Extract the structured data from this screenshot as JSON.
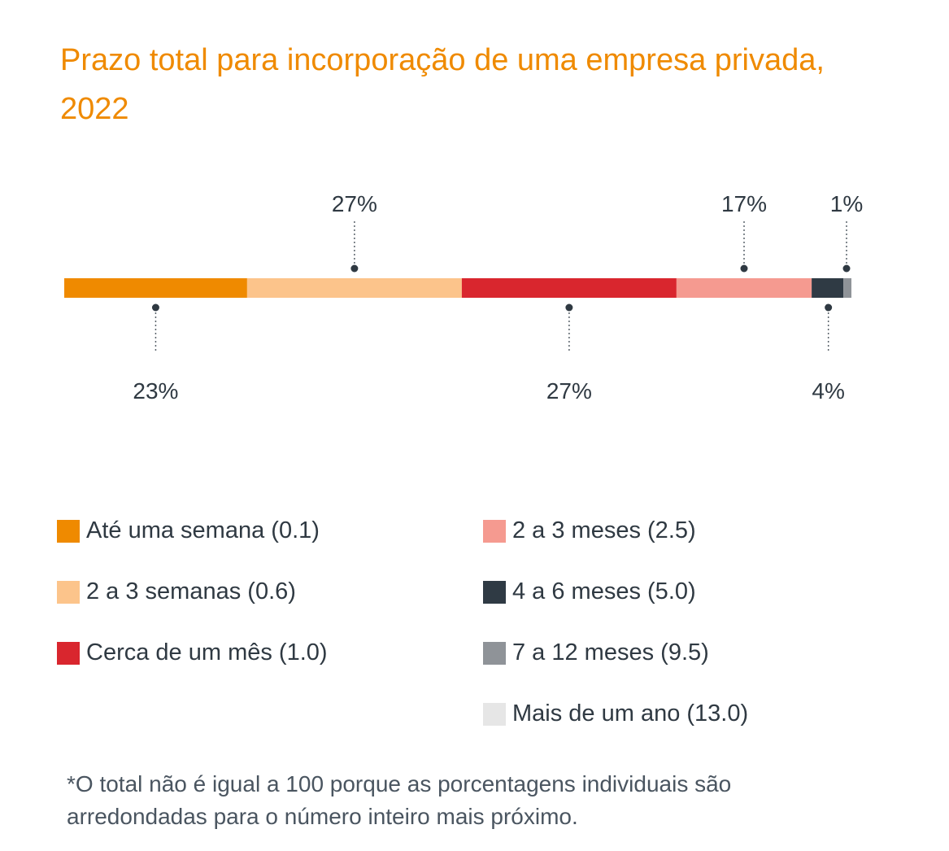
{
  "title": "Prazo total para incorporação de uma empresa privada, 2022",
  "chart_data": {
    "type": "bar",
    "stacked": true,
    "orientation": "horizontal",
    "title": "Prazo total para incorporação de uma empresa privada, 2022",
    "unit": "%",
    "series": [
      {
        "name": "Até uma semana (0.1)",
        "value": 23,
        "label": "23%",
        "color": "#ef8a00",
        "label_position": "below"
      },
      {
        "name": "2 a 3 semanas (0.6)",
        "value": 27,
        "label": "27%",
        "color": "#fcc48b",
        "label_position": "above"
      },
      {
        "name": "Cerca de um mês (1.0)",
        "value": 27,
        "label": "27%",
        "color": "#d9262e",
        "label_position": "below"
      },
      {
        "name": "2 a 3 meses (2.5)",
        "value": 17,
        "label": "17%",
        "color": "#f59a90",
        "label_position": "above"
      },
      {
        "name": "4 a 6 meses (5.0)",
        "value": 4,
        "label": "4%",
        "color": "#2f3a44",
        "label_position": "below"
      },
      {
        "name": "7 a 12 meses (9.5)",
        "value": 1,
        "label": "1%",
        "color": "#8f9398",
        "label_position": "above"
      },
      {
        "name": "Mais de um ano (13.0)",
        "value": 0,
        "label": "",
        "color": "#e6e6e6",
        "label_position": "none"
      }
    ],
    "legend_position": "bottom"
  },
  "legend": {
    "left": [
      {
        "label": "Até uma semana (0.1)",
        "color": "#ef8a00"
      },
      {
        "label": "2 a 3 semanas (0.6)",
        "color": "#fcc48b"
      },
      {
        "label": "Cerca de um mês (1.0)",
        "color": "#d9262e"
      }
    ],
    "right": [
      {
        "label": "2 a 3 meses (2.5)",
        "color": "#f59a90"
      },
      {
        "label": "4 a 6 meses (5.0)",
        "color": "#2f3a44"
      },
      {
        "label": "7 a 12 meses (9.5)",
        "color": "#8f9398"
      },
      {
        "label": "Mais de um ano (13.0)",
        "color": "#e6e6e6"
      }
    ]
  },
  "footnote": "*O total não é igual a 100 porque as porcentagens individuais são arredondadas para o número inteiro mais próximo."
}
